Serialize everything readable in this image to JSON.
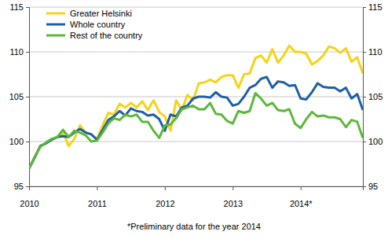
{
  "chart_data": {
    "type": "line",
    "categories": [
      "2010",
      null,
      null,
      null,
      null,
      null,
      null,
      null,
      null,
      null,
      null,
      null,
      "2011",
      null,
      null,
      null,
      null,
      null,
      null,
      null,
      null,
      null,
      null,
      null,
      "2012",
      null,
      null,
      null,
      null,
      null,
      null,
      null,
      null,
      null,
      null,
      null,
      "2013",
      null,
      null,
      null,
      null,
      null,
      null,
      null,
      null,
      null,
      null,
      null,
      "2014*",
      null,
      null,
      null,
      null,
      null,
      null,
      null,
      null,
      null,
      null,
      null
    ],
    "series": [
      {
        "name": "Greater Helsinki",
        "color": "#f5d317",
        "values": [
          97.0,
          98.3,
          99.5,
          99.8,
          100.2,
          100.5,
          101.0,
          99.5,
          100.3,
          101.8,
          101.0,
          100.8,
          100.3,
          101.8,
          103.2,
          103.0,
          104.2,
          103.8,
          104.3,
          103.8,
          104.5,
          103.5,
          104.6,
          103.3,
          102.8,
          101.2,
          104.6,
          103.5,
          105.2,
          104.6,
          106.5,
          106.6,
          106.9,
          106.6,
          107.2,
          107.4,
          107.4,
          106.0,
          107.5,
          107.6,
          109.3,
          109.6,
          108.8,
          110.3,
          108.8,
          109.6,
          110.7,
          110.0,
          110.0,
          109.8,
          108.6,
          109.0,
          109.6,
          110.6,
          110.4,
          109.9,
          110.4,
          108.9,
          109.4,
          107.6
        ]
      },
      {
        "name": "Whole country",
        "color": "#1f5fa6",
        "values": [
          97.0,
          98.2,
          99.5,
          99.8,
          100.2,
          100.5,
          100.6,
          100.5,
          101.0,
          101.4,
          101.0,
          100.8,
          100.2,
          101.3,
          102.4,
          102.8,
          103.4,
          102.9,
          103.7,
          103.4,
          103.3,
          102.9,
          103.0,
          102.5,
          101.2,
          103.0,
          102.8,
          103.8,
          104.0,
          104.8,
          105.0,
          105.0,
          104.9,
          105.5,
          105.0,
          104.9,
          104.0,
          104.2,
          105.0,
          106.0,
          106.3,
          107.0,
          107.2,
          106.0,
          106.7,
          106.6,
          106.2,
          106.3,
          104.8,
          104.7,
          105.5,
          106.5,
          106.1,
          106.0,
          106.0,
          105.6,
          106.0,
          104.8,
          105.3,
          103.5
        ]
      },
      {
        "name": "Rest of the country",
        "color": "#5cb83a",
        "values": [
          97.0,
          98.3,
          99.4,
          99.9,
          100.3,
          100.5,
          101.3,
          100.5,
          101.2,
          101.0,
          100.7,
          100.0,
          100.1,
          101.0,
          102.0,
          102.6,
          102.4,
          103.0,
          102.8,
          103.0,
          102.2,
          102.2,
          101.2,
          100.4,
          101.8,
          101.9,
          102.6,
          103.6,
          103.8,
          104.0,
          103.6,
          103.6,
          104.3,
          103.1,
          103.0,
          102.3,
          102.0,
          103.4,
          103.2,
          103.4,
          105.4,
          104.8,
          104.0,
          104.3,
          103.5,
          103.4,
          103.6,
          102.0,
          101.5,
          102.5,
          103.3,
          102.8,
          102.9,
          102.7,
          102.7,
          102.5,
          101.6,
          102.4,
          102.2,
          100.4
        ]
      }
    ],
    "ylim": [
      95,
      115
    ],
    "yticks": [
      95,
      100,
      105,
      110,
      115
    ],
    "grid": true,
    "legend": "upper left",
    "annotations": [
      "*Preliminary data for the year 2014"
    ]
  }
}
